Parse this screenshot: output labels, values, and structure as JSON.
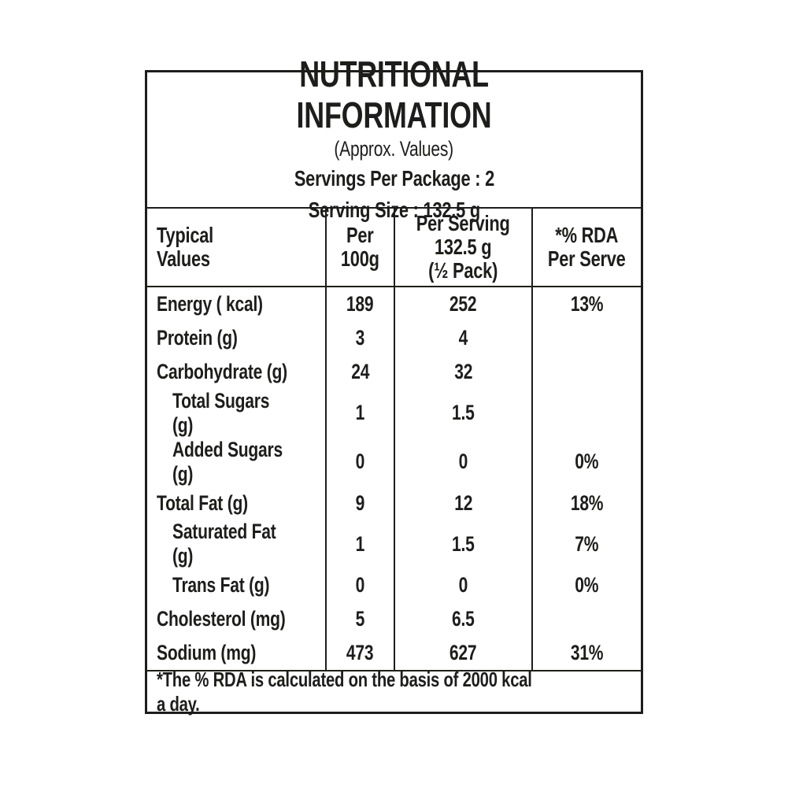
{
  "colors": {
    "text": "#1d1d1b",
    "border": "#1d1d1b",
    "background": "#ffffff"
  },
  "header": {
    "title": "NUTRITIONAL INFORMATION",
    "subtitle": "(Approx. Values)",
    "servings_per_package": "Servings Per Package : 2",
    "serving_size": "Serving Size : 132.5 g"
  },
  "table": {
    "columns": [
      {
        "label": "Typical\nValues"
      },
      {
        "label": "Per\n100g"
      },
      {
        "label": "Per Serving\n132.5 g\n(½ Pack)"
      },
      {
        "label": "*% RDA\nPer Serve"
      }
    ],
    "rows": [
      {
        "name": "Energy ( kcal)",
        "per_100g": "189",
        "per_serving": "252",
        "rda_per_serve": "13%"
      },
      {
        "name": "Protein (g)",
        "per_100g": "3",
        "per_serving": "4",
        "rda_per_serve": ""
      },
      {
        "name": "Carbohydrate (g)",
        "per_100g": "24",
        "per_serving": "32",
        "rda_per_serve": ""
      },
      {
        "name": "Total Sugars (g)",
        "per_100g": "1",
        "per_serving": "1.5",
        "rda_per_serve": ""
      },
      {
        "name": "Added Sugars (g)",
        "per_100g": "0",
        "per_serving": "0",
        "rda_per_serve": "0%"
      },
      {
        "name": "Total Fat (g)",
        "per_100g": "9",
        "per_serving": "12",
        "rda_per_serve": "18%"
      },
      {
        "name": "Saturated Fat (g)",
        "per_100g": "1",
        "per_serving": "1.5",
        "rda_per_serve": "7%"
      },
      {
        "name": "Trans Fat (g)",
        "per_100g": "0",
        "per_serving": "0",
        "rda_per_serve": "0%"
      },
      {
        "name": "Cholesterol (mg)",
        "per_100g": "5",
        "per_serving": "6.5",
        "rda_per_serve": ""
      },
      {
        "name": "Sodium (mg)",
        "per_100g": "473",
        "per_serving": "627",
        "rda_per_serve": "31%"
      }
    ]
  },
  "footnote": "*The % RDA is calculated on the basis of 2000 kcal a day."
}
